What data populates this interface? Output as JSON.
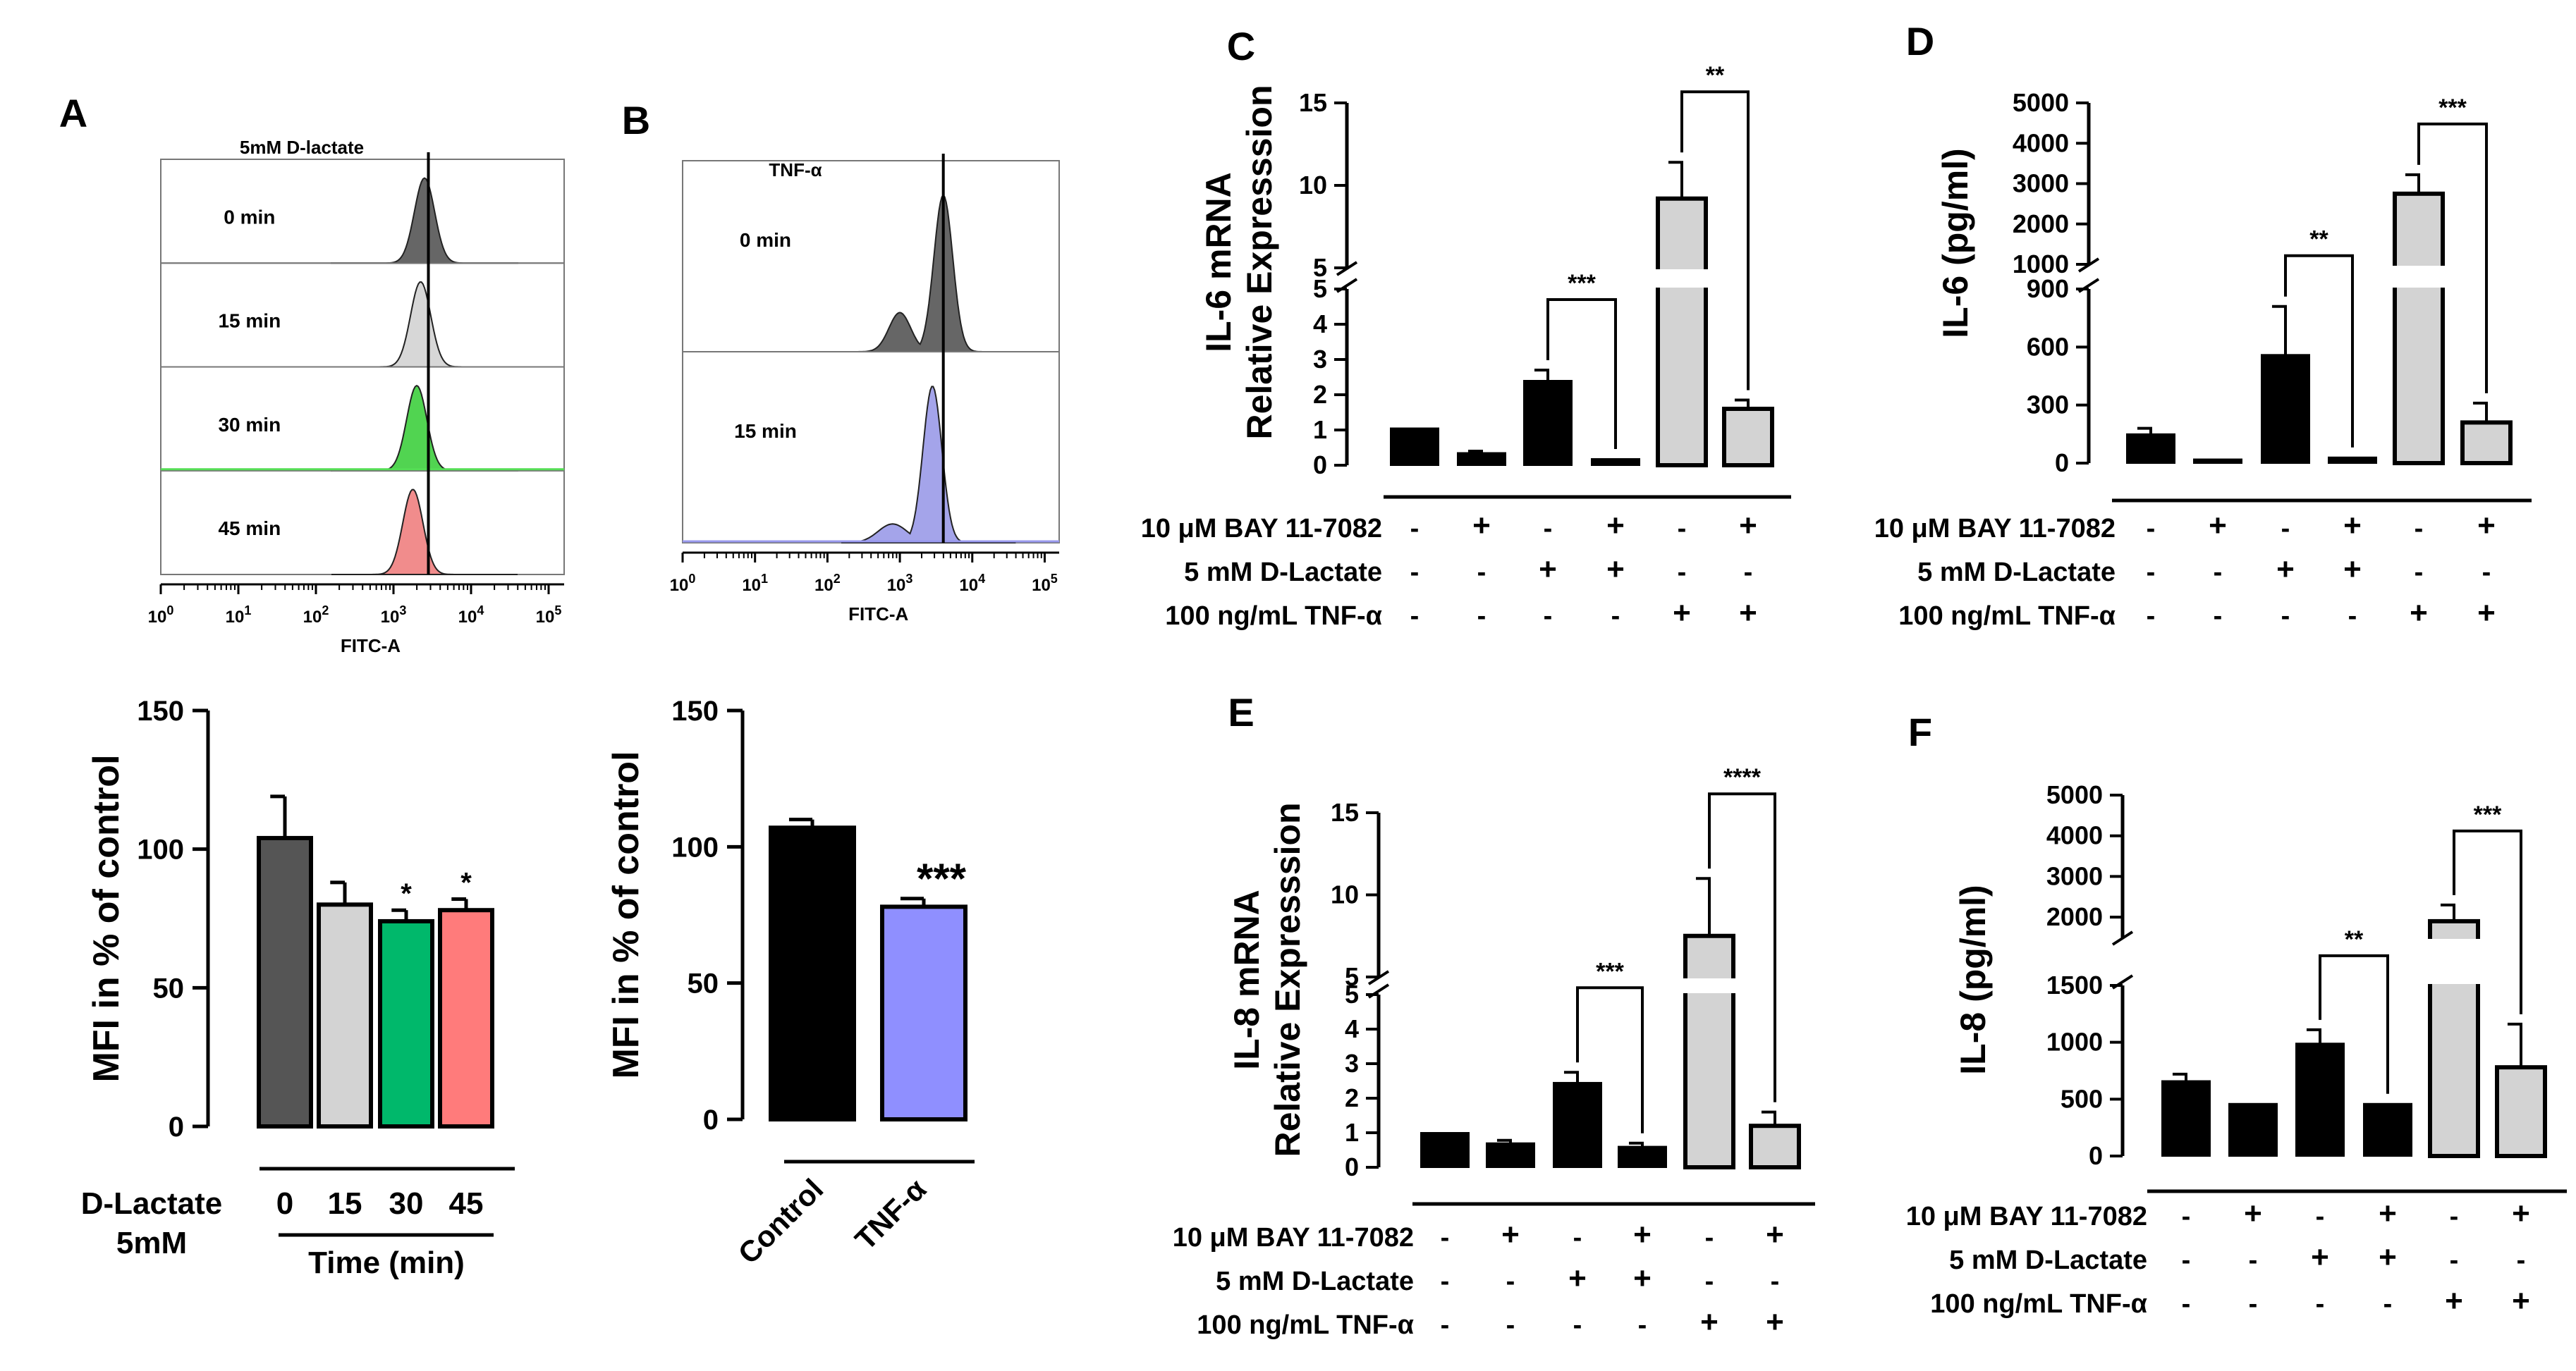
{
  "colors": {
    "dark_gray": "#555555",
    "light_gray": "#d3d3d3",
    "green": "#00b86b",
    "salmon": "#ff7b7b",
    "lavender": "#8f8fff",
    "black": "#000000",
    "hist_green": "#3ecf3e",
    "hist_red": "#f08080",
    "hist_blue": "#9a9ae8",
    "gridline_green": "#55dd55",
    "gridline_blue": "#9999ee"
  },
  "treatment_table": {
    "rows": [
      {
        "label": "10 μM BAY 11-7082",
        "signs": [
          "-",
          "+",
          "-",
          "+",
          "-",
          "+"
        ]
      },
      {
        "label": "5 mM D-Lactate",
        "signs": [
          "-",
          "-",
          "+",
          "+",
          "-",
          "-"
        ]
      },
      {
        "label": "100 ng/mL TNF-α",
        "signs": [
          "-",
          "-",
          "-",
          "-",
          "+",
          "+"
        ]
      }
    ]
  },
  "chart_data": [
    {
      "panel": "A",
      "type": "histogram_overlay",
      "title": "5mM D-lactate",
      "xlabel": "FITC-A",
      "x_scale": "log",
      "x_ticks": [
        "10^0",
        "10^1",
        "10^2",
        "10^3",
        "10^4",
        "10^5"
      ],
      "tracks": [
        {
          "label": "0 min",
          "color": "#555555",
          "peak_log": 3.4
        },
        {
          "label": "15 min",
          "color": "#d3d3d3",
          "peak_log": 3.35
        },
        {
          "label": "30 min",
          "color": "#3ecf3e",
          "peak_log": 3.3
        },
        {
          "label": "45 min",
          "color": "#f08080",
          "peak_log": 3.25
        }
      ],
      "reference_line_log": 3.45
    },
    {
      "panel": "B",
      "type": "histogram_overlay",
      "title": "TNF-α",
      "xlabel": "FITC-A",
      "x_scale": "log",
      "x_ticks": [
        "10^0",
        "10^1",
        "10^2",
        "10^3",
        "10^4",
        "10^5"
      ],
      "tracks": [
        {
          "label": "0 min",
          "color": "#555555",
          "peak_log": 3.6
        },
        {
          "label": "15 min",
          "color": "#9a9ae8",
          "peak_log": 3.45
        }
      ],
      "reference_line_log": 3.6
    },
    {
      "panel": "A",
      "type": "bar",
      "ylabel": "MFI in % of control",
      "ylim": [
        0,
        150
      ],
      "yticks": [
        0,
        50,
        100,
        150
      ],
      "categories": [
        "0",
        "15",
        "30",
        "45"
      ],
      "values": [
        104,
        80,
        74,
        78
      ],
      "errors": [
        15,
        8,
        4,
        4
      ],
      "colors": [
        "#555555",
        "#d3d3d3",
        "#00b86b",
        "#ff7b7b"
      ],
      "significance": [
        "",
        "",
        "*",
        "*"
      ],
      "group_label": "D-Lactate",
      "group_label2": "5mM",
      "xlabel": "Time (min)"
    },
    {
      "panel": "B",
      "type": "bar",
      "ylabel": "MFI in % of control",
      "ylim": [
        0,
        150
      ],
      "yticks": [
        0,
        50,
        100,
        150
      ],
      "categories": [
        "Control",
        "TNF-α"
      ],
      "values": [
        107,
        78
      ],
      "errors": [
        3,
        3
      ],
      "colors": [
        "#000000",
        "#8f8fff"
      ],
      "significance": [
        "",
        "***"
      ]
    },
    {
      "panel": "C",
      "type": "bar",
      "ylabel": "IL-6 mRNA",
      "ylabel2": "Relative Expresssion",
      "axis_break": {
        "lower": [
          0,
          5
        ],
        "upper": [
          5,
          15
        ]
      },
      "lower_ticks": [
        0,
        1,
        2,
        3,
        4,
        5
      ],
      "upper_ticks": [
        5,
        10,
        15
      ],
      "values": [
        1.05,
        0.35,
        2.4,
        0.18,
        9.2,
        1.6
      ],
      "errors": [
        0,
        0.05,
        0.3,
        0,
        2.2,
        0.25
      ],
      "fill": [
        "black",
        "black",
        "black",
        "black",
        "lightgray",
        "lightgray"
      ],
      "brackets": [
        {
          "from": 2,
          "to": 3,
          "label": "***"
        },
        {
          "from": 4,
          "to": 5,
          "label": "**"
        }
      ]
    },
    {
      "panel": "D",
      "type": "bar",
      "ylabel": "IL-6 (pg/ml)",
      "axis_break": {
        "lower": [
          0,
          900
        ],
        "upper": [
          1000,
          5000
        ]
      },
      "lower_ticks": [
        0,
        300,
        600,
        900
      ],
      "upper_ticks": [
        1000,
        2000,
        3000,
        4000,
        5000
      ],
      "values": [
        150,
        20,
        560,
        30,
        2750,
        210
      ],
      "errors": [
        30,
        0,
        250,
        0,
        470,
        100
      ],
      "fill": [
        "black",
        "black",
        "black",
        "black",
        "lightgray",
        "lightgray"
      ],
      "brackets": [
        {
          "from": 2,
          "to": 3,
          "label": "**"
        },
        {
          "from": 4,
          "to": 5,
          "label": "***"
        }
      ]
    },
    {
      "panel": "E",
      "type": "bar",
      "ylabel": "IL-8 mRNA",
      "ylabel2": "Relative Expresssion",
      "axis_break": {
        "lower": [
          0,
          5
        ],
        "upper": [
          5,
          15
        ]
      },
      "lower_ticks": [
        0,
        1,
        2,
        3,
        4,
        5
      ],
      "upper_ticks": [
        5,
        10,
        15
      ],
      "values": [
        1.0,
        0.7,
        2.45,
        0.6,
        7.5,
        1.2
      ],
      "errors": [
        0,
        0.08,
        0.3,
        0.1,
        3.5,
        0.4
      ],
      "fill": [
        "black",
        "black",
        "black",
        "black",
        "lightgray",
        "lightgray"
      ],
      "brackets": [
        {
          "from": 2,
          "to": 3,
          "label": "***"
        },
        {
          "from": 4,
          "to": 5,
          "label": "****"
        }
      ]
    },
    {
      "panel": "F",
      "type": "bar",
      "ylabel": "IL-8 (pg/ml)",
      "axis_break": {
        "lower": [
          0,
          1500
        ],
        "upper": [
          1500,
          5000
        ]
      },
      "lower_ticks": [
        0,
        500,
        1000,
        1500
      ],
      "upper_ticks": [
        2000,
        3000,
        4000,
        5000
      ],
      "values": [
        660,
        460,
        990,
        460,
        1900,
        780
      ],
      "errors": [
        60,
        0,
        120,
        0,
        400,
        380
      ],
      "fill": [
        "black",
        "black",
        "black",
        "black",
        "lightgray",
        "lightgray"
      ],
      "brackets": [
        {
          "from": 2,
          "to": 3,
          "label": "**"
        },
        {
          "from": 4,
          "to": 5,
          "label": "***"
        }
      ]
    }
  ]
}
